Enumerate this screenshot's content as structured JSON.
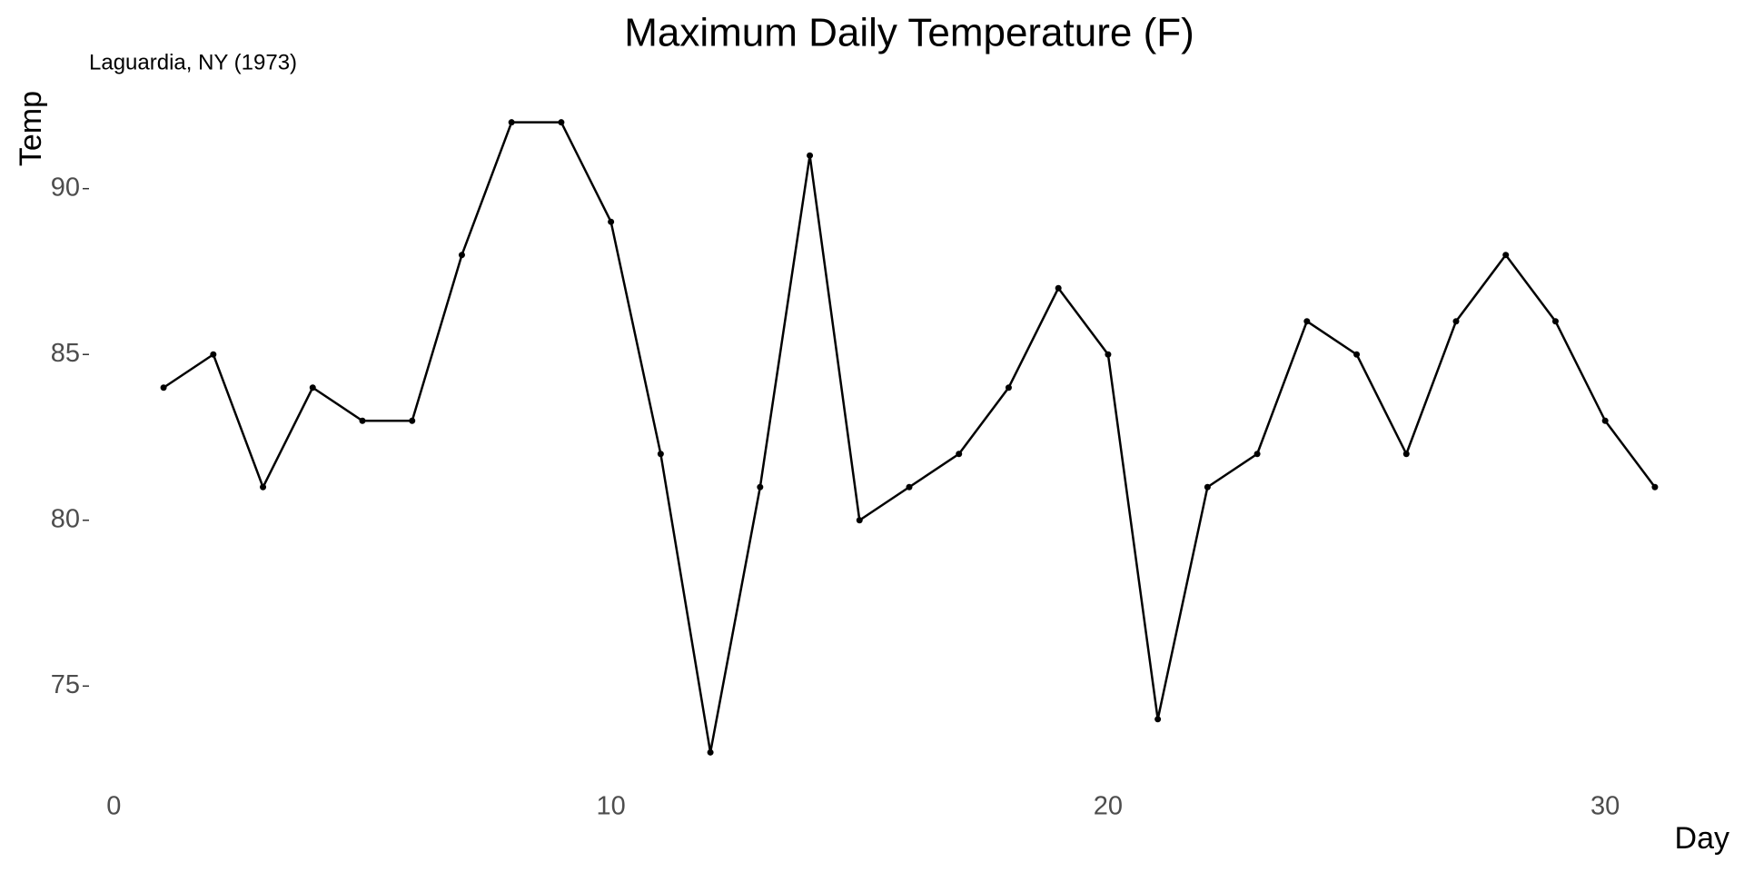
{
  "chart_data": {
    "type": "line",
    "title": "Maximum Daily Temperature (F)",
    "subtitle": "Laguardia, NY (1973)",
    "x_label": "Day",
    "y_label": "Temp",
    "x": [
      1,
      2,
      3,
      4,
      5,
      6,
      7,
      8,
      9,
      10,
      11,
      12,
      13,
      14,
      15,
      16,
      17,
      18,
      19,
      20,
      21,
      22,
      23,
      24,
      25,
      26,
      27,
      28,
      29,
      30,
      31
    ],
    "values": [
      84,
      85,
      81,
      84,
      83,
      83,
      88,
      92,
      92,
      89,
      82,
      73,
      81,
      91,
      80,
      81,
      82,
      84,
      87,
      85,
      74,
      81,
      82,
      86,
      85,
      82,
      86,
      88,
      86,
      83,
      81
    ],
    "color": "#000000",
    "markers": true,
    "xlim": [
      -0.5,
      32.5
    ],
    "xticks": [
      0,
      10,
      20,
      30
    ],
    "ylim": [
      72.05,
      92.95
    ],
    "yticks": [
      75,
      80,
      85,
      90
    ]
  }
}
